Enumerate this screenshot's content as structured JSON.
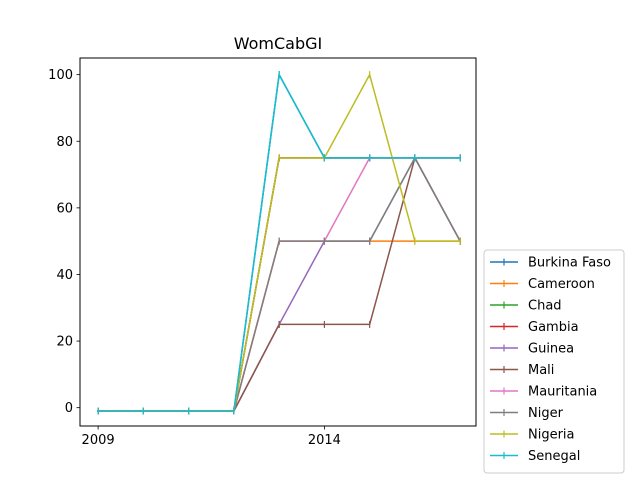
{
  "chart_data": {
    "type": "line",
    "title": "WomCabGI",
    "xlabel": "",
    "ylabel": "",
    "x": [
      2009,
      2010,
      2011,
      2012,
      2013,
      2014,
      2015,
      2016,
      2017
    ],
    "x_ticks": [
      2009,
      2014
    ],
    "y_ticks": [
      0,
      20,
      40,
      60,
      80,
      100
    ],
    "xlim": [
      2008.6,
      2017.35
    ],
    "ylim": [
      -5.5,
      105
    ],
    "grid": false,
    "legend_position": "lower-right-outside",
    "series": [
      {
        "name": "Burkina Faso",
        "color": "#1f77b4",
        "values": [
          -1,
          -1,
          -1,
          -1,
          100,
          75,
          75,
          75,
          75
        ]
      },
      {
        "name": "Cameroon",
        "color": "#ff7f0e",
        "values": [
          -1,
          -1,
          -1,
          -1,
          50,
          50,
          50,
          50,
          50
        ]
      },
      {
        "name": "Chad",
        "color": "#2ca02c",
        "values": [
          -1,
          -1,
          -1,
          -1,
          75,
          75,
          75,
          75,
          75
        ]
      },
      {
        "name": "Gambia",
        "color": "#d62728",
        "values": [
          -1,
          -1,
          -1,
          -1,
          75,
          75,
          75,
          75,
          75
        ]
      },
      {
        "name": "Guinea",
        "color": "#9467bd",
        "values": [
          -1,
          -1,
          -1,
          -1,
          25,
          50,
          50,
          75,
          50
        ]
      },
      {
        "name": "Mali",
        "color": "#8c564b",
        "values": [
          -1,
          -1,
          -1,
          -1,
          25,
          25,
          25,
          75,
          50
        ]
      },
      {
        "name": "Mauritania",
        "color": "#e377c2",
        "values": [
          -1,
          -1,
          -1,
          -1,
          50,
          50,
          75,
          75,
          75
        ]
      },
      {
        "name": "Niger",
        "color": "#7f7f7f",
        "values": [
          -1,
          -1,
          -1,
          -1,
          50,
          50,
          50,
          75,
          50
        ]
      },
      {
        "name": "Nigeria",
        "color": "#bcbd22",
        "values": [
          -1,
          -1,
          -1,
          -1,
          75,
          75,
          100,
          50,
          50
        ]
      },
      {
        "name": "Senegal",
        "color": "#17becf",
        "values": [
          -1,
          -1,
          -1,
          -1,
          100,
          75,
          75,
          75,
          75
        ]
      }
    ]
  }
}
